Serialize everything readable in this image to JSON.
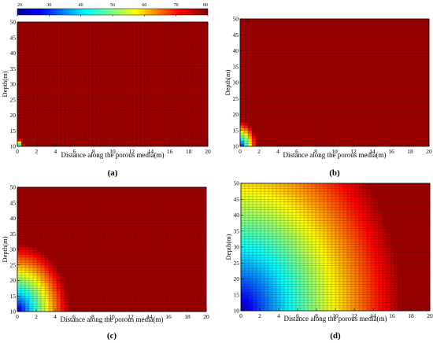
{
  "figure": {
    "type": "multi-panel heatmap",
    "colorbar": {
      "ticks": [
        20,
        30,
        40,
        50,
        60,
        70,
        80
      ],
      "range": [
        20,
        80
      ],
      "colormap": "jet",
      "dark_red": "#7a0e0e",
      "grid_line_color": "#3a0a0a"
    }
  },
  "chart_data": [
    {
      "type": "heatmap",
      "panel_label": "(a)",
      "xlabel": "Distance along the porous media(m)",
      "ylabel": "Depth(m)",
      "xlim": [
        0,
        20
      ],
      "ylim": [
        10,
        50
      ],
      "x_ticks": [
        0,
        2,
        4,
        6,
        8,
        10,
        12,
        14,
        16,
        18,
        20
      ],
      "y_ticks": [
        10,
        15,
        20,
        25,
        30,
        35,
        40,
        45,
        50
      ],
      "grid": true,
      "description_values": "Nearly uniform value ~78 across domain; small cool patch near x=0, depth 10–12 (~40–60)",
      "cold_zone": {
        "x0": 0,
        "depth0": 10,
        "radius_x": 0.7,
        "radius_depth": 2.5
      }
    },
    {
      "type": "heatmap",
      "panel_label": "(b)",
      "xlabel": "Distance along the porous media(m)",
      "ylabel": "Depth(m)",
      "xlim": [
        0,
        20
      ],
      "ylim": [
        10,
        50
      ],
      "x_ticks": [
        0,
        2,
        4,
        6,
        8,
        10,
        12,
        14,
        16,
        18,
        20
      ],
      "y_ticks": [
        10,
        15,
        20,
        25,
        30,
        35,
        40,
        45,
        50
      ],
      "grid": true,
      "cold_zone": {
        "x0": 0,
        "depth0": 10,
        "radius_x": 1.8,
        "radius_depth": 8
      }
    },
    {
      "type": "heatmap",
      "panel_label": "(c)",
      "xlabel": "Distance along the porous media(m)",
      "ylabel": "Depth(m)",
      "xlim": [
        0,
        20
      ],
      "ylim": [
        10,
        50
      ],
      "x_ticks": [
        0,
        2,
        4,
        6,
        8,
        10,
        12,
        14,
        16,
        18,
        20
      ],
      "y_ticks": [
        10,
        15,
        20,
        25,
        30,
        35,
        40,
        45,
        50
      ],
      "grid": true,
      "cold_zone": {
        "x0": 0,
        "depth0": 10,
        "radius_x": 5.5,
        "radius_depth": 22
      }
    },
    {
      "type": "heatmap",
      "panel_label": "(d)",
      "xlabel": "Distance along the porous media(m)",
      "ylabel": "Depth(m)",
      "xlim": [
        0,
        20
      ],
      "ylim": [
        10,
        50
      ],
      "x_ticks": [
        0,
        2,
        4,
        6,
        8,
        10,
        12,
        14,
        16,
        18,
        20
      ],
      "y_ticks": [
        10,
        15,
        20,
        25,
        30,
        35,
        40,
        45,
        50
      ],
      "grid": true,
      "cold_zone": {
        "x0": 0,
        "depth0": 10,
        "radius_x": 17,
        "radius_depth": 65
      }
    }
  ]
}
